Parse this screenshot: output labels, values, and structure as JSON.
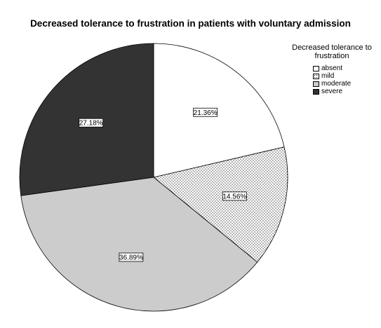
{
  "chart_data": {
    "type": "pie",
    "title": "Decreased tolerance to frustration in patients with voluntary admission",
    "legend_title": "Decreased tolerance to frustration",
    "legend_position": "top-right",
    "categories": [
      "absent",
      "mild",
      "moderate",
      "severe"
    ],
    "values": [
      21.36,
      14.56,
      36.89,
      27.18
    ],
    "labels": [
      "21.36%",
      "14.56%",
      "36.89%",
      "27.18%"
    ],
    "colors": [
      "#ffffff",
      "#ffffff",
      "#cccccc",
      "#333333"
    ],
    "patterns": [
      "none",
      "dots",
      "none",
      "none"
    ]
  }
}
